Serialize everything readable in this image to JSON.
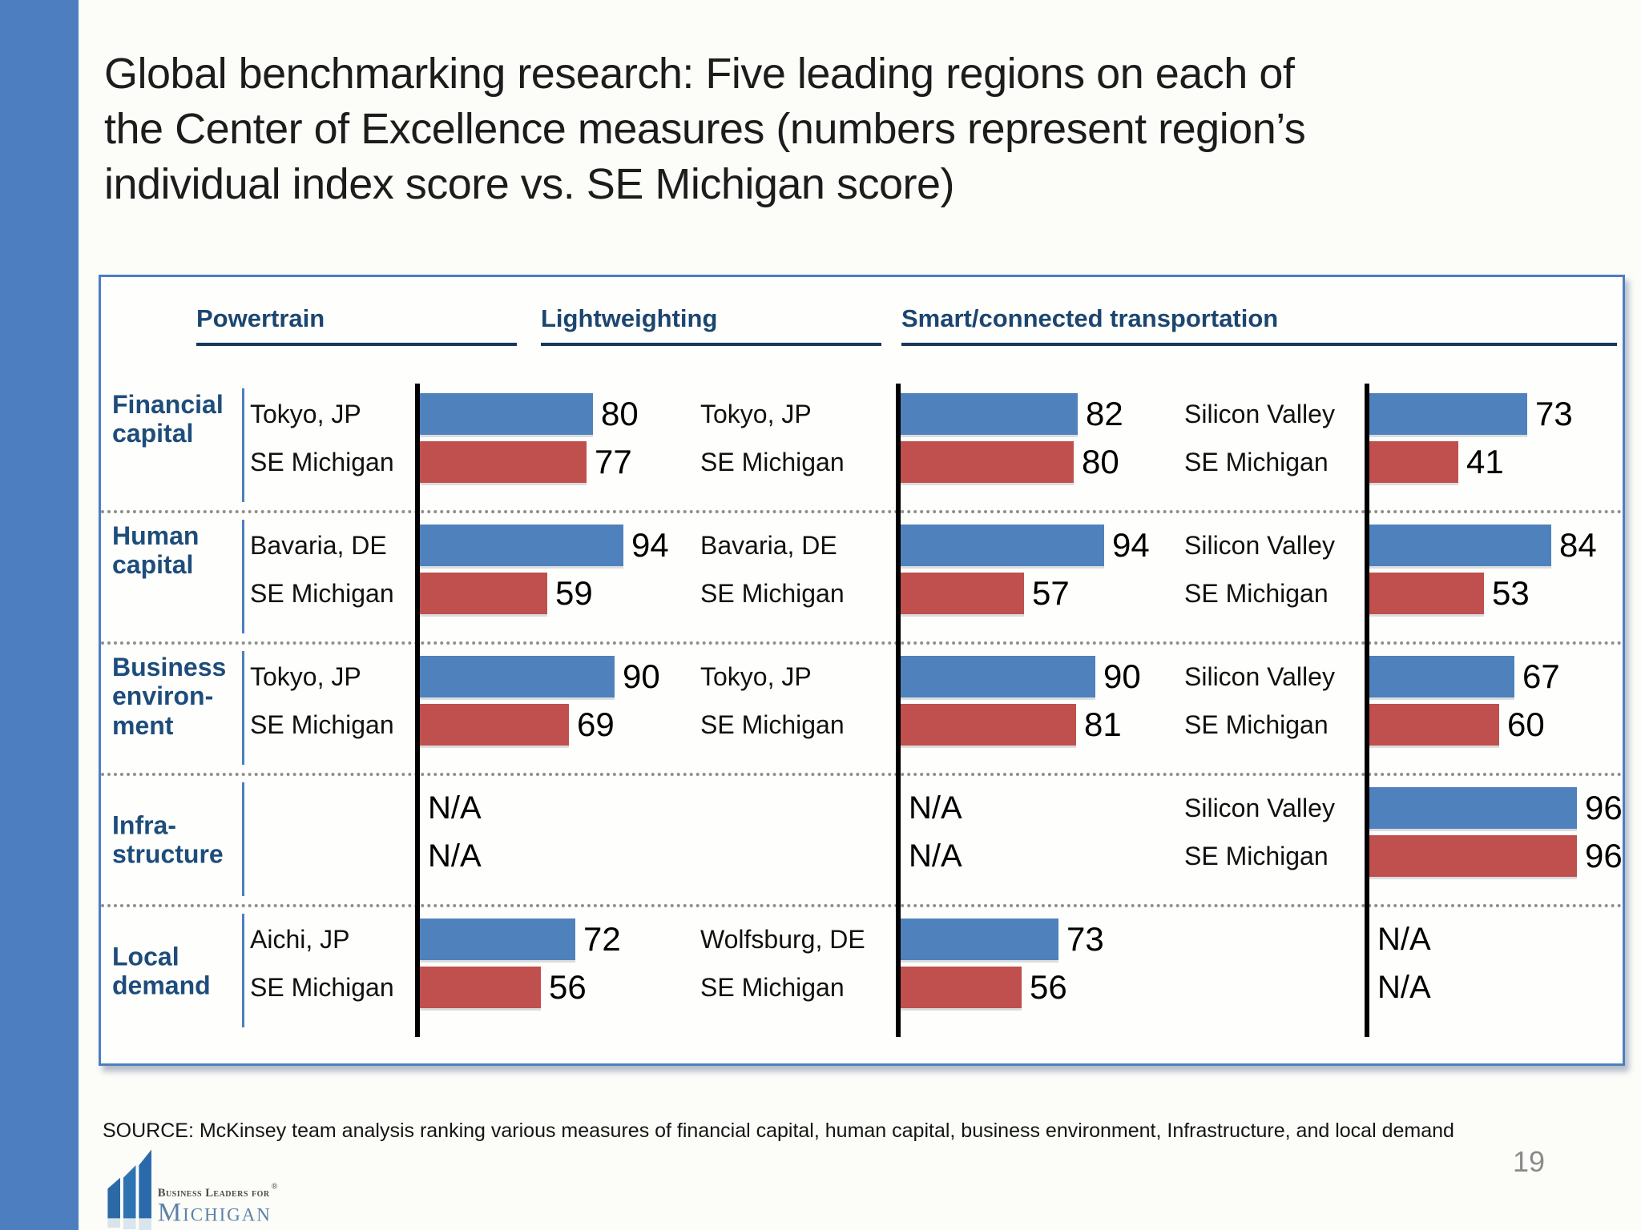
{
  "slide": {
    "title": "Global benchmarking research: Five leading regions on each of\nthe Center of Excellence measures (numbers represent region’s\nindividual index score vs. SE Michigan score)",
    "source": "SOURCE: McKinsey team analysis ranking various measures of financial capital, human capital, business environment, Infrastructure, and local demand",
    "page_number": "19",
    "logo": {
      "line1": "Business Leaders for",
      "reg_mark": "®",
      "line2": "Michigan"
    }
  },
  "colors": {
    "accent_blue": "#4d7ec0",
    "leader_bar": "#4f81bd",
    "michigan_bar": "#c0504d",
    "header_text": "#1c4670",
    "axis_black": "#000000"
  },
  "chart_data": {
    "type": "bar",
    "na_label": "N/A",
    "value_range": [
      0,
      100
    ],
    "columns": [
      "Powertrain",
      "Lightweighting",
      "Smart/connected transportation"
    ],
    "rows": [
      {
        "measure": "Financial\ncapital",
        "cells": [
          {
            "region": "Tokyo, JP",
            "region_score": 80,
            "michigan_label": "SE Michigan",
            "michigan_score": 77
          },
          {
            "region": "Tokyo, JP",
            "region_score": 82,
            "michigan_label": "SE Michigan",
            "michigan_score": 80
          },
          {
            "region": "Silicon Valley",
            "region_score": 73,
            "michigan_label": "SE Michigan",
            "michigan_score": 41
          }
        ]
      },
      {
        "measure": "Human\ncapital",
        "cells": [
          {
            "region": "Bavaria, DE",
            "region_score": 94,
            "michigan_label": "SE Michigan",
            "michigan_score": 59
          },
          {
            "region": "Bavaria, DE",
            "region_score": 94,
            "michigan_label": "SE Michigan",
            "michigan_score": 57
          },
          {
            "region": "Silicon Valley",
            "region_score": 84,
            "michigan_label": "SE Michigan",
            "michigan_score": 53
          }
        ]
      },
      {
        "measure": "Business\nenviron-\nment",
        "cells": [
          {
            "region": "Tokyo, JP",
            "region_score": 90,
            "michigan_label": "SE Michigan",
            "michigan_score": 69
          },
          {
            "region": "Tokyo, JP",
            "region_score": 90,
            "michigan_label": "SE Michigan",
            "michigan_score": 81
          },
          {
            "region": "Silicon Valley",
            "region_score": 67,
            "michigan_label": "SE Michigan",
            "michigan_score": 60
          }
        ]
      },
      {
        "measure": "Infra-\nstructure",
        "cells": [
          {
            "na": true
          },
          {
            "na": true
          },
          {
            "region": "Silicon Valley",
            "region_score": 96,
            "michigan_label": "SE Michigan",
            "michigan_score": 96
          }
        ]
      },
      {
        "measure": "Local\ndemand",
        "cells": [
          {
            "region": "Aichi, JP",
            "region_score": 72,
            "michigan_label": "SE Michigan",
            "michigan_score": 56
          },
          {
            "region": "Wolfsburg, DE",
            "region_score": 73,
            "michigan_label": "SE Michigan",
            "michigan_score": 56
          },
          {
            "na": true
          }
        ]
      }
    ]
  }
}
